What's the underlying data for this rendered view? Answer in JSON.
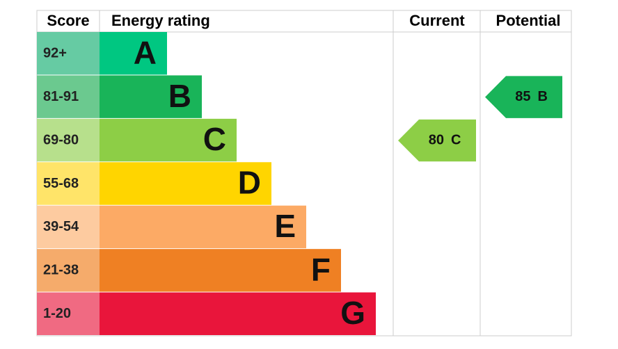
{
  "header": {
    "score": "Score",
    "rating": "Energy rating",
    "current": "Current",
    "potential": "Potential"
  },
  "bands": [
    {
      "score": "92+",
      "letter": "A",
      "color": "#00c781",
      "light": "#66cba3"
    },
    {
      "score": "81-91",
      "letter": "B",
      "color": "#19b459",
      "light": "#6bc98f"
    },
    {
      "score": "69-80",
      "letter": "C",
      "color": "#8dce46",
      "light": "#b7e08c"
    },
    {
      "score": "55-68",
      "letter": "D",
      "color": "#ffd500",
      "light": "#ffe469"
    },
    {
      "score": "39-54",
      "letter": "E",
      "color": "#fcaa65",
      "light": "#fdcba0"
    },
    {
      "score": "21-38",
      "letter": "F",
      "color": "#ef8023",
      "light": "#f5ab6b"
    },
    {
      "score": "1-20",
      "letter": "G",
      "color": "#e9153b",
      "light": "#f06a82"
    }
  ],
  "current": {
    "value": 80,
    "letter": "C"
  },
  "potential": {
    "value": 85,
    "letter": "B"
  }
}
